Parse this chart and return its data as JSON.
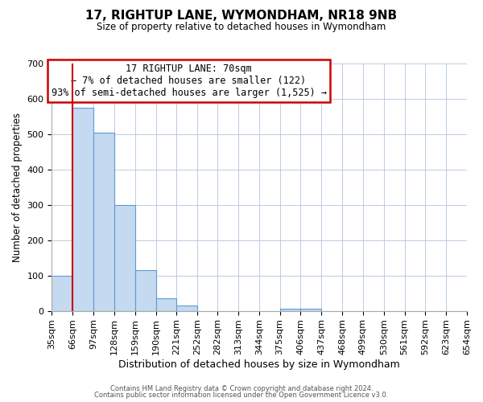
{
  "title": "17, RIGHTUP LANE, WYMONDHAM, NR18 9NB",
  "subtitle": "Size of property relative to detached houses in Wymondham",
  "xlabel": "Distribution of detached houses by size in Wymondham",
  "ylabel": "Number of detached properties",
  "bar_color": "#c5d9f0",
  "bar_edge_color": "#5b9bd5",
  "background_color": "#ffffff",
  "grid_color": "#b0c4de",
  "bins": [
    35,
    66,
    97,
    128,
    159,
    190,
    221,
    252,
    282,
    313,
    344,
    375,
    406,
    437,
    468,
    499,
    530,
    561,
    592,
    623,
    654
  ],
  "bin_labels": [
    "35sqm",
    "66sqm",
    "97sqm",
    "128sqm",
    "159sqm",
    "190sqm",
    "221sqm",
    "252sqm",
    "282sqm",
    "313sqm",
    "344sqm",
    "375sqm",
    "406sqm",
    "437sqm",
    "468sqm",
    "499sqm",
    "530sqm",
    "561sqm",
    "592sqm",
    "623sqm",
    "654sqm"
  ],
  "counts": [
    100,
    575,
    505,
    300,
    115,
    35,
    15,
    0,
    0,
    0,
    0,
    5,
    5,
    0,
    0,
    0,
    0,
    0,
    0,
    0
  ],
  "ylim": [
    0,
    700
  ],
  "yticks": [
    0,
    100,
    200,
    300,
    400,
    500,
    600,
    700
  ],
  "property_line_x": 66,
  "annotation_title": "17 RIGHTUP LANE: 70sqm",
  "annotation_line1": "← 7% of detached houses are smaller (122)",
  "annotation_line2": "93% of semi-detached houses are larger (1,525) →",
  "annotation_box_color": "#ffffff",
  "annotation_box_edge_color": "#cc0000",
  "footnote1": "Contains HM Land Registry data © Crown copyright and database right 2024.",
  "footnote2": "Contains public sector information licensed under the Open Government Licence v3.0."
}
